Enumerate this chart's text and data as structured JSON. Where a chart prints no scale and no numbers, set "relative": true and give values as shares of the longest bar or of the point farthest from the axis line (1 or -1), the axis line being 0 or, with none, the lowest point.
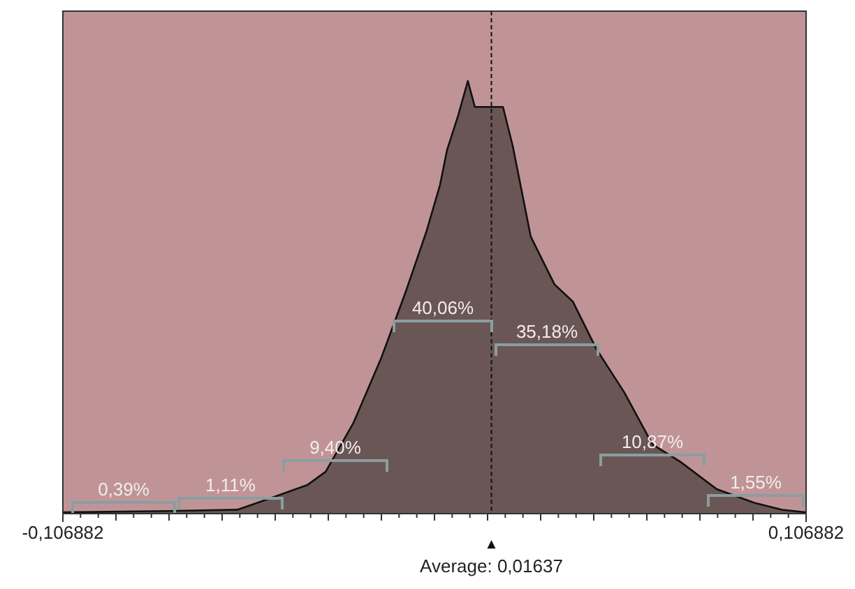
{
  "chart_data": {
    "type": "area",
    "relative": true,
    "x": [
      -0.1068,
      -0.0767,
      -0.0567,
      -0.0474,
      -0.0366,
      -0.0313,
      -0.0233,
      -0.0153,
      -0.0084,
      -0.0024,
      0.0016,
      0.0036,
      0.0068,
      0.0096,
      0.0116,
      0.0157,
      0.0177,
      0.0197,
      0.0225,
      0.0277,
      0.0345,
      0.0398,
      0.0466,
      0.0546,
      0.0627,
      0.0707,
      0.0811,
      0.092,
      0.1,
      0.1068
    ],
    "values": [
      0.003,
      0.006,
      0.009,
      0.035,
      0.066,
      0.097,
      0.21,
      0.36,
      0.51,
      0.65,
      0.76,
      0.84,
      0.92,
      1,
      0.94,
      0.94,
      0.94,
      0.94,
      0.85,
      0.64,
      0.53,
      0.49,
      0.38,
      0.28,
      0.16,
      0.12,
      0.057,
      0.025,
      0.009,
      0.003
    ],
    "color": "#6b5656",
    "xlim": [
      -0.106882,
      0.106882
    ],
    "xticks": [
      {
        "value": -0.106882,
        "label": "-0,106882"
      },
      {
        "value": 0.106882,
        "label": "0,106882"
      }
    ],
    "ref_lines": [
      {
        "axis": "x",
        "value": 0.01637,
        "label": "Average: 0,01637",
        "line_style": "dashed"
      }
    ],
    "annotations": [
      "0,39%",
      "1,11%",
      "9,40%",
      "40,06%",
      "35,18%",
      "10,87%",
      "1,55%"
    ]
  }
}
